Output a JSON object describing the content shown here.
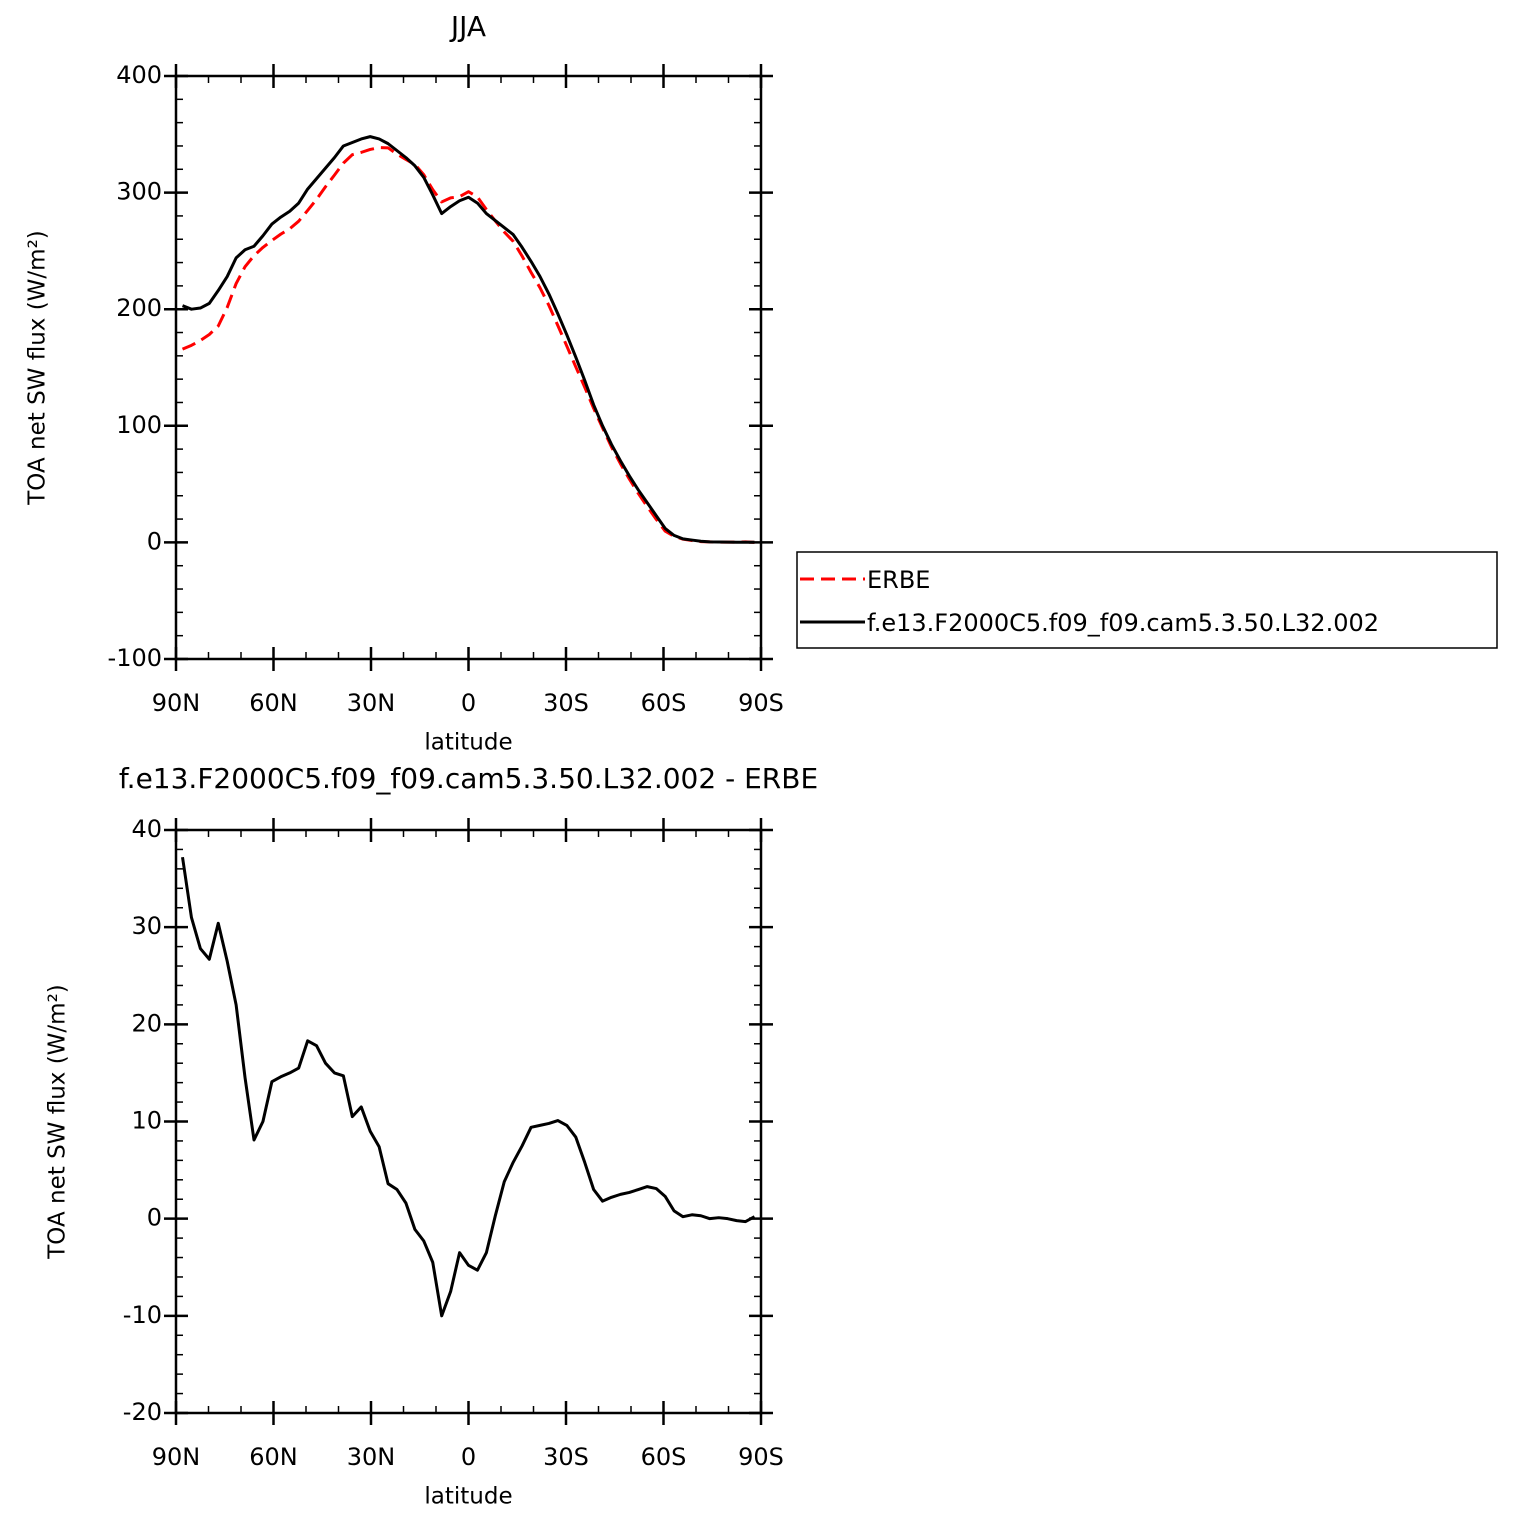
{
  "chart_data": [
    {
      "type": "line",
      "title": "JJA",
      "xlabel": "latitude",
      "ylabel": "TOA net SW flux (W/m²)",
      "xlim": [
        90,
        -90
      ],
      "xticks": [
        {
          "value": 90,
          "label": "90N"
        },
        {
          "value": 60,
          "label": "60N"
        },
        {
          "value": 30,
          "label": "30N"
        },
        0,
        {
          "value": -30,
          "label": "30S"
        },
        {
          "value": -60,
          "label": "60S"
        },
        {
          "value": -90,
          "label": "90S"
        }
      ],
      "minor_xticks": [
        80,
        70,
        50,
        40,
        20,
        10,
        -10,
        -20,
        -40,
        -50,
        -70,
        -80
      ],
      "ylim": [
        -100,
        400
      ],
      "yticks": [
        -100,
        0,
        100,
        200,
        300,
        400
      ],
      "minor_yticks": [
        -80,
        -60,
        -40,
        -20,
        20,
        40,
        60,
        80,
        120,
        140,
        160,
        180,
        220,
        240,
        260,
        280,
        320,
        340,
        360,
        380
      ],
      "legend": "right",
      "x": [
        88,
        85.25,
        82.5,
        79.75,
        77,
        74.25,
        71.5,
        68.75,
        66,
        63.25,
        60.5,
        57.75,
        55,
        52.25,
        49.5,
        46.75,
        44,
        41.25,
        38.5,
        35.75,
        33,
        30.25,
        27.5,
        24.75,
        22,
        19.25,
        16.5,
        13.75,
        11,
        8.25,
        5.5,
        2.75,
        0,
        -2.75,
        -5.5,
        -8.25,
        -11,
        -13.75,
        -16.5,
        -19.25,
        -22,
        -24.75,
        -27.5,
        -30.25,
        -33,
        -35.75,
        -38.5,
        -41.25,
        -44,
        -46.75,
        -49.5,
        -52.25,
        -55,
        -57.75,
        -60.5,
        -63.25,
        -66,
        -68.75,
        -71.5,
        -74.25,
        -77,
        -79.75,
        -82.5,
        -85.25,
        -88
      ],
      "series": [
        {
          "name": "ERBE",
          "color": "#ff0000",
          "linestyle": "dashed",
          "values": [
            165.8,
            169,
            173.2,
            178.3,
            185.6,
            201.5,
            222,
            236.5,
            245.9,
            253,
            258.9,
            264.4,
            269,
            275.5,
            284.7,
            294.2,
            305,
            315,
            325.3,
            332.5,
            334.5,
            337,
            338.6,
            338.4,
            333,
            328.4,
            324.1,
            315.3,
            302.5,
            292,
            295.5,
            296.5,
            300.8,
            296.3,
            285.5,
            275.7,
            266.2,
            258.2,
            245.5,
            231.6,
            218.4,
            203.2,
            185.9,
            168.4,
            150.6,
            133.2,
            115,
            98.2,
            81.8,
            67.5,
            54.3,
            42,
            30.7,
            19.9,
            9.7,
            5.2,
            2.8,
            1.6,
            0.7,
            0.5,
            0.2,
            0.2,
            0.3,
            0.4,
            0
          ]
        },
        {
          "name": "f.e13.F2000C5.f09_f09.cam5.3.50.L32.002",
          "color": "#000000",
          "linestyle": "solid",
          "values": [
            203,
            200,
            201,
            205,
            216,
            228,
            244,
            251,
            254,
            263,
            273,
            279,
            284,
            291,
            303,
            312,
            321,
            330,
            340,
            343,
            346,
            348,
            346,
            342,
            336,
            330,
            323,
            313,
            298,
            282,
            288,
            293,
            296,
            291,
            282,
            276,
            270,
            264,
            253,
            241,
            228,
            213,
            196,
            178,
            159,
            139,
            118,
            100,
            84,
            70,
            57,
            45,
            34,
            23,
            12,
            6,
            3,
            2,
            1,
            0.5,
            0.3,
            0.2,
            0.1,
            0.1,
            0.1
          ]
        }
      ]
    },
    {
      "type": "line",
      "title": "f.e13.F2000C5.f09_f09.cam5.3.50.L32.002 - ERBE",
      "xlabel": "latitude",
      "ylabel": "TOA net SW flux (W/m²)",
      "xlim": [
        90,
        -90
      ],
      "xticks": [
        {
          "value": 90,
          "label": "90N"
        },
        {
          "value": 60,
          "label": "60N"
        },
        {
          "value": 30,
          "label": "30N"
        },
        0,
        {
          "value": -30,
          "label": "30S"
        },
        {
          "value": -60,
          "label": "60S"
        },
        {
          "value": -90,
          "label": "90S"
        }
      ],
      "minor_xticks": [
        80,
        70,
        50,
        40,
        20,
        10,
        -10,
        -20,
        -40,
        -50,
        -70,
        -80
      ],
      "ylim": [
        -20,
        40
      ],
      "yticks": [
        -20,
        -10,
        0,
        10,
        20,
        30,
        40
      ],
      "minor_yticks": [
        -18,
        -16,
        -14,
        -12,
        -8,
        -6,
        -4,
        -2,
        2,
        4,
        6,
        8,
        12,
        14,
        16,
        18,
        22,
        24,
        26,
        28,
        32,
        34,
        36,
        38
      ],
      "x": [
        88,
        85.25,
        82.5,
        79.75,
        77,
        74.25,
        71.5,
        68.75,
        66,
        63.25,
        60.5,
        57.75,
        55,
        52.25,
        49.5,
        46.75,
        44,
        41.25,
        38.5,
        35.75,
        33,
        30.25,
        27.5,
        24.75,
        22,
        19.25,
        16.5,
        13.75,
        11,
        8.25,
        5.5,
        2.75,
        0,
        -2.75,
        -5.5,
        -8.25,
        -11,
        -13.75,
        -16.5,
        -19.25,
        -22,
        -24.75,
        -27.5,
        -30.25,
        -33,
        -35.75,
        -38.5,
        -41.25,
        -44,
        -46.75,
        -49.5,
        -52.25,
        -55,
        -57.75,
        -60.5,
        -63.25,
        -66,
        -68.75,
        -71.5,
        -74.25,
        -77,
        -79.75,
        -82.5,
        -85.25,
        -88
      ],
      "series": [
        {
          "color": "#000000",
          "linestyle": "solid",
          "values": [
            37.2,
            31,
            27.8,
            26.7,
            30.4,
            26.5,
            22,
            14.5,
            8.1,
            10,
            14.1,
            14.6,
            15,
            15.5,
            18.3,
            17.8,
            16,
            15,
            14.7,
            10.5,
            11.5,
            9,
            7.4,
            3.6,
            3,
            1.6,
            -1.1,
            -2.3,
            -4.5,
            -10,
            -7.5,
            -3.5,
            -4.8,
            -5.3,
            -3.5,
            0.3,
            3.8,
            5.8,
            7.5,
            9.4,
            9.6,
            9.8,
            10.1,
            9.6,
            8.4,
            5.8,
            3,
            1.8,
            2.2,
            2.5,
            2.7,
            3,
            3.3,
            3.1,
            2.3,
            0.8,
            0.2,
            0.4,
            0.3,
            0,
            0.1,
            0,
            -0.2,
            -0.3,
            0.2
          ]
        }
      ]
    }
  ]
}
